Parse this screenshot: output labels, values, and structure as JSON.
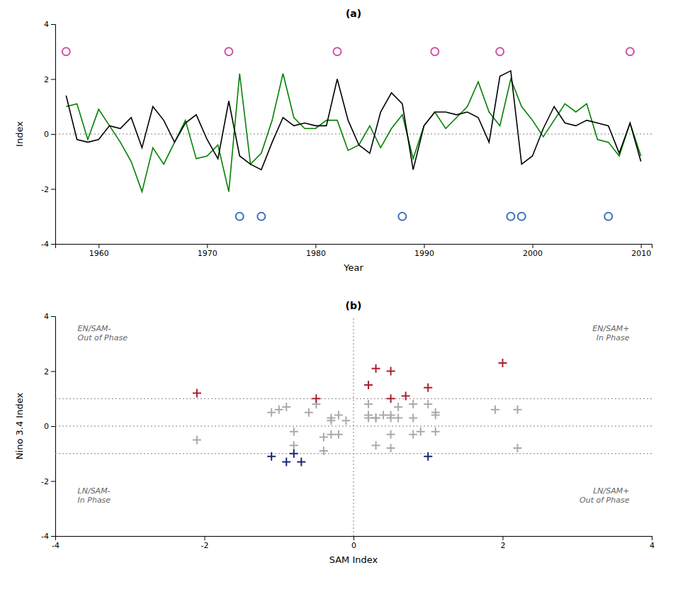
{
  "chart_data": [
    {
      "type": "line",
      "title": "(a)",
      "xlabel": "Year",
      "ylabel": "Index",
      "x": [
        1957,
        1958,
        1959,
        1960,
        1961,
        1962,
        1963,
        1964,
        1965,
        1966,
        1967,
        1968,
        1969,
        1970,
        1971,
        1972,
        1973,
        1974,
        1975,
        1976,
        1977,
        1978,
        1979,
        1980,
        1981,
        1982,
        1983,
        1984,
        1985,
        1986,
        1987,
        1988,
        1989,
        1990,
        1991,
        1992,
        1993,
        1994,
        1995,
        1996,
        1997,
        1998,
        1999,
        2000,
        2001,
        2002,
        2003,
        2004,
        2005,
        2006,
        2007,
        2008,
        2009,
        2010
      ],
      "series": [
        {
          "color": "green",
          "values": [
            1.0,
            1.1,
            -0.2,
            0.9,
            0.3,
            -0.3,
            -1.0,
            -2.1,
            -0.5,
            -1.1,
            -0.3,
            0.5,
            -0.9,
            -0.8,
            -0.4,
            -2.1,
            2.2,
            -1.1,
            -0.7,
            0.5,
            2.2,
            0.6,
            0.2,
            0.2,
            0.5,
            0.5,
            -0.6,
            -0.4,
            0.3,
            -0.5,
            0.2,
            0.7,
            -0.9,
            0.3,
            0.8,
            0.2,
            0.6,
            1.0,
            1.9,
            0.8,
            0.3,
            2.0,
            1.0,
            0.5,
            -0.1,
            0.5,
            1.1,
            0.8,
            1.1,
            -0.2,
            -0.3,
            -0.8,
            0.4,
            -0.8
          ]
        },
        {
          "color": "black",
          "values": [
            1.4,
            -0.2,
            -0.3,
            -0.2,
            0.3,
            0.2,
            0.6,
            -0.5,
            1.0,
            0.5,
            -0.3,
            0.4,
            0.7,
            -0.2,
            -0.9,
            1.2,
            -0.8,
            -1.1,
            -1.3,
            -0.3,
            0.6,
            0.3,
            0.4,
            0.3,
            0.3,
            2.0,
            0.5,
            -0.4,
            -0.7,
            0.8,
            1.5,
            1.1,
            -1.3,
            0.3,
            0.8,
            0.8,
            0.7,
            0.8,
            0.6,
            -0.3,
            2.1,
            2.3,
            -1.1,
            -0.8,
            0.2,
            1.0,
            0.4,
            0.3,
            0.5,
            0.4,
            0.3,
            -0.7,
            0.4,
            -1.0
          ]
        },
        {
          "type": "scatter",
          "marker": "circle",
          "color": "#D050A0",
          "x": [
            1957,
            1972,
            1982,
            1991,
            1997,
            2009
          ],
          "values": [
            3,
            3,
            3,
            3,
            3,
            3
          ]
        },
        {
          "type": "scatter",
          "marker": "circle",
          "color": "#4070C0",
          "x": [
            1973,
            1975,
            1988,
            1998,
            1999,
            2007
          ],
          "values": [
            -3,
            -3,
            -3,
            -3,
            -3,
            -3
          ]
        }
      ],
      "hlines": [
        0
      ],
      "xlim": [
        1956,
        2011
      ],
      "ylim": [
        -4,
        4
      ],
      "xticks": [
        1960,
        1970,
        1980,
        1990,
        2000,
        2010
      ],
      "yticks": [
        -4,
        -2,
        0,
        2,
        4
      ],
      "grid": false
    },
    {
      "type": "scatter",
      "title": "(b)",
      "xlabel": "SAM Index",
      "ylabel": "Nino 3.4 Index",
      "series": [
        {
          "marker": "plus",
          "color": "#AAAAAA",
          "x": [
            1.1,
            -0.2,
            0.9,
            0.3,
            -0.3,
            -1.0,
            -2.1,
            -1.1,
            -0.3,
            0.5,
            -0.9,
            -0.8,
            -0.4,
            2.2,
            0.5,
            2.2,
            0.6,
            0.2,
            0.2,
            0.5,
            -0.6,
            -0.4,
            0.3,
            -0.5,
            0.3,
            0.8,
            0.2,
            0.6,
            1.0,
            1.9,
            0.8,
            0.5,
            -0.1,
            1.1,
            0.8,
            1.1,
            -0.2,
            -0.3,
            -0.8,
            0.4
          ],
          "values": [
            -0.2,
            -0.3,
            -0.2,
            0.3,
            0.2,
            0.6,
            -0.5,
            0.5,
            -0.3,
            0.4,
            0.7,
            -0.2,
            -0.9,
            -0.8,
            -0.3,
            0.6,
            0.3,
            0.4,
            0.3,
            0.3,
            0.5,
            -0.4,
            -0.7,
            0.8,
            0.3,
            0.8,
            0.8,
            0.7,
            0.8,
            0.6,
            -0.3,
            -0.8,
            0.2,
            0.4,
            0.3,
            0.5,
            0.4,
            0.3,
            -0.7,
            0.4
          ]
        },
        {
          "marker": "plus",
          "color": "#AA2030",
          "x": [
            1.0,
            -0.5,
            -2.1,
            0.5,
            0.2,
            0.7,
            0.3,
            2.0,
            0.5
          ],
          "values": [
            1.4,
            1.0,
            1.2,
            2.0,
            1.5,
            1.1,
            2.1,
            2.3,
            1.0
          ]
        },
        {
          "marker": "plus",
          "color": "#1A2575",
          "x": [
            -1.1,
            -0.7,
            -0.9,
            1.0,
            -0.8
          ],
          "values": [
            -1.1,
            -1.3,
            -1.3,
            -1.1,
            -1.0
          ]
        }
      ],
      "hlines": [
        0,
        1,
        -1
      ],
      "vlines": [
        0
      ],
      "annotations": [
        {
          "x": -3.7,
          "y": 3.7,
          "text": "EN/SAM-\nOut of Phase"
        },
        {
          "x": 3.7,
          "y": 3.7,
          "text": "EN/SAM+\nIn Phase"
        },
        {
          "x": -3.7,
          "y": -2.2,
          "text": "LN/SAM-\nIn Phase"
        },
        {
          "x": 3.7,
          "y": -2.2,
          "text": "LN/SAM+\nOut of Phase"
        }
      ],
      "xlim": [
        -4,
        4
      ],
      "ylim": [
        -4,
        4
      ],
      "xticks": [
        -4,
        -2,
        0,
        2,
        4
      ],
      "yticks": [
        -4,
        -2,
        0,
        2,
        4
      ],
      "grid": false
    }
  ]
}
